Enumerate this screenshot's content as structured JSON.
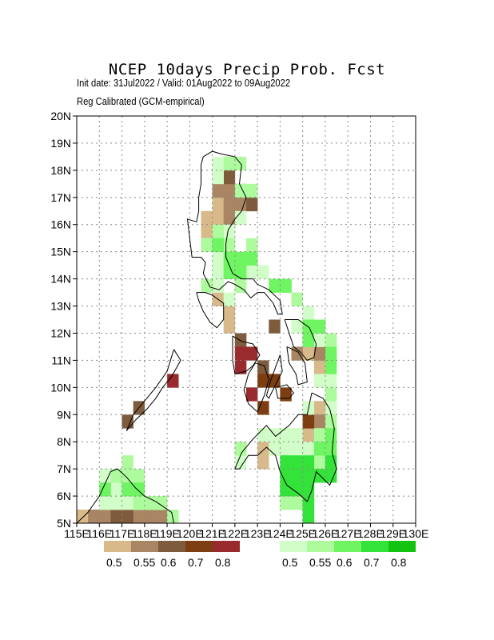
{
  "header": {
    "title": "NCEP 10days Precip Prob. Fcst",
    "subtitle_dates": "Init date: 31Jul2022 / Valid: 01Aug2022 to 09Aug2022",
    "subtitle_method": "Reg Calibrated (GCM-empirical)"
  },
  "map": {
    "lon_range": [
      115,
      130
    ],
    "lat_range": [
      5,
      20
    ],
    "x_ticks": [
      "115E",
      "116E",
      "117E",
      "118E",
      "119E",
      "120E",
      "121E",
      "122E",
      "123E",
      "124E",
      "125E",
      "126E",
      "127E",
      "128E",
      "129E",
      "130E"
    ],
    "y_ticks": [
      "5N",
      "6N",
      "7N",
      "8N",
      "9N",
      "10N",
      "11N",
      "12N",
      "13N",
      "14N",
      "15N",
      "16N",
      "17N",
      "18N",
      "19N",
      "20N"
    ],
    "grid": "dotted"
  },
  "legend": {
    "dry": {
      "colors": [
        "#d7b98a",
        "#a98563",
        "#7e5b3c",
        "#7c3e10",
        "#992a2e"
      ],
      "labels": [
        "0.5",
        "0.55",
        "0.6",
        "0.7",
        "0.8"
      ]
    },
    "wet": {
      "colors": [
        "#d1fdc8",
        "#aefb9e",
        "#6ff561",
        "#34e33a",
        "#12c40f"
      ],
      "labels": [
        "0.5",
        "0.55",
        "0.6",
        "0.7",
        "0.8"
      ]
    }
  },
  "cells": {
    "#d7b98a": [
      [
        115,
        5
      ],
      [
        121,
        16.5
      ],
      [
        121,
        16
      ],
      [
        120.5,
        16
      ],
      [
        120.5,
        15.5
      ],
      [
        121,
        13
      ],
      [
        121.5,
        12.5
      ],
      [
        121.5,
        12
      ],
      [
        122,
        7.5
      ],
      [
        123,
        7.5
      ],
      [
        123,
        7
      ],
      [
        124.5,
        7
      ],
      [
        124.5,
        8
      ],
      [
        125,
        8
      ],
      [
        125.5,
        8
      ],
      [
        125.5,
        9
      ],
      [
        125,
        11
      ],
      [
        125.5,
        10.5
      ],
      [
        122,
        11.5
      ],
      [
        121,
        17.5
      ],
      [
        121.5,
        17.5
      ]
    ],
    "#a98563": [
      [
        115.5,
        5
      ],
      [
        116,
        5
      ],
      [
        118,
        5
      ],
      [
        118.5,
        5
      ],
      [
        117.5,
        5
      ],
      [
        121.5,
        18
      ],
      [
        121,
        17
      ],
      [
        121.5,
        17
      ],
      [
        121.5,
        16.5
      ],
      [
        121.5,
        16
      ],
      [
        122,
        17
      ],
      [
        122,
        16.5
      ],
      [
        125.5,
        11
      ],
      [
        124.5,
        11
      ],
      [
        125.5,
        8.5
      ],
      [
        125,
        8.5
      ]
    ],
    "#7e5b3c": [
      [
        116.5,
        5
      ],
      [
        117,
        5
      ],
      [
        121.5,
        17.5
      ],
      [
        122.5,
        16.5
      ],
      [
        123.5,
        12
      ],
      [
        122,
        11.5
      ],
      [
        117,
        8.5
      ],
      [
        117.5,
        9
      ],
      [
        123,
        10.5
      ]
    ],
    "#7c3e10": [
      [
        123,
        10
      ],
      [
        123.5,
        10
      ],
      [
        123,
        9
      ],
      [
        124,
        9.5
      ],
      [
        125,
        8.5
      ]
    ],
    "#992a2e": [
      [
        122,
        11
      ],
      [
        122.5,
        11
      ],
      [
        122,
        10.5
      ],
      [
        119,
        10
      ],
      [
        122.5,
        9.5
      ]
    ],
    "#d1fdc8": [
      [
        121,
        18
      ],
      [
        122,
        18
      ],
      [
        121,
        17.5
      ],
      [
        122,
        16
      ],
      [
        120.5,
        15
      ],
      [
        121,
        15
      ],
      [
        121.5,
        15
      ],
      [
        121,
        14.5
      ],
      [
        121.5,
        14.5
      ],
      [
        121,
        14
      ],
      [
        121.5,
        14
      ],
      [
        121,
        13.5
      ],
      [
        122,
        13.5
      ],
      [
        123,
        14
      ],
      [
        122.5,
        14
      ],
      [
        120.5,
        13.5
      ],
      [
        121.5,
        13
      ],
      [
        121.5,
        15.5
      ],
      [
        123,
        8
      ],
      [
        123.5,
        8
      ],
      [
        123.5,
        7.5
      ],
      [
        124,
        7.5
      ],
      [
        124,
        8
      ],
      [
        124.5,
        8
      ],
      [
        124.5,
        7.5
      ],
      [
        125,
        7.5
      ],
      [
        125,
        7
      ],
      [
        125.5,
        7.5
      ],
      [
        125,
        9
      ],
      [
        125.5,
        10
      ],
      [
        125.5,
        11.5
      ],
      [
        124.5,
        12
      ],
      [
        125,
        12.5
      ],
      [
        126,
        10
      ],
      [
        126,
        9
      ],
      [
        116,
        6.5
      ],
      [
        116.5,
        6.5
      ],
      [
        116.5,
        6
      ],
      [
        117,
        6
      ],
      [
        117,
        6.5
      ],
      [
        116.5,
        5.5
      ],
      [
        117,
        5.5
      ],
      [
        117.5,
        5.5
      ],
      [
        116,
        5.5
      ],
      [
        122,
        7
      ],
      [
        118.5,
        5.5
      ],
      [
        118,
        5.5
      ]
    ],
    "#aefb9e": [
      [
        121,
        15.5
      ],
      [
        121.5,
        15
      ],
      [
        120.5,
        13.5
      ],
      [
        121.5,
        14
      ],
      [
        122,
        14
      ],
      [
        122,
        13.5
      ],
      [
        124,
        13.5
      ],
      [
        124.5,
        13
      ],
      [
        125.5,
        12
      ],
      [
        125,
        11.5
      ],
      [
        126,
        11.5
      ],
      [
        126,
        9.5
      ],
      [
        126,
        8.5
      ],
      [
        125.5,
        8
      ],
      [
        126,
        7.5
      ],
      [
        125.5,
        7
      ],
      [
        126,
        7
      ],
      [
        117,
        7
      ],
      [
        116.5,
        6.5
      ],
      [
        117,
        6.5
      ],
      [
        117.5,
        6.5
      ],
      [
        117.5,
        6
      ],
      [
        117.5,
        5.5
      ],
      [
        118,
        5.5
      ],
      [
        118.5,
        5.5
      ],
      [
        119,
        5
      ],
      [
        116,
        6
      ],
      [
        122,
        7.5
      ],
      [
        124,
        6
      ],
      [
        124.5,
        6
      ],
      [
        124,
        5.5
      ],
      [
        124.5,
        5.5
      ],
      [
        125,
        5.5
      ],
      [
        125,
        6
      ],
      [
        125.5,
        6.5
      ],
      [
        122.5,
        15
      ],
      [
        122,
        17
      ],
      [
        122.5,
        17
      ],
      [
        122,
        18
      ],
      [
        121.5,
        18
      ],
      [
        120.5,
        15
      ]
    ],
    "#6ff561": [
      [
        122.5,
        14.5
      ],
      [
        122,
        14
      ],
      [
        121.5,
        14
      ],
      [
        124,
        13.5
      ],
      [
        125,
        12
      ],
      [
        125.5,
        12
      ],
      [
        126,
        8
      ],
      [
        126,
        7.5
      ],
      [
        125.5,
        7.5
      ],
      [
        126,
        6.5
      ],
      [
        125.5,
        6.5
      ],
      [
        125,
        6.5
      ],
      [
        124,
        6.5
      ],
      [
        124,
        7
      ],
      [
        117,
        6
      ],
      [
        117.5,
        6
      ],
      [
        116,
        6
      ],
      [
        121,
        15
      ],
      [
        121.5,
        14.5
      ],
      [
        122,
        14.5
      ],
      [
        123.5,
        13.5
      ],
      [
        125,
        11.5
      ],
      [
        126,
        11
      ],
      [
        126,
        10.5
      ],
      [
        124,
        6
      ],
      [
        124.5,
        6
      ],
      [
        125,
        6
      ],
      [
        125,
        5.5
      ],
      [
        125,
        5
      ]
    ],
    "#34e33a": [
      [
        124,
        7
      ],
      [
        124.5,
        7
      ],
      [
        124,
        6.5
      ],
      [
        124.5,
        6.5
      ],
      [
        125,
        6.5
      ],
      [
        124,
        6
      ],
      [
        124.5,
        6
      ],
      [
        125,
        6
      ],
      [
        125,
        7
      ],
      [
        125,
        5.5
      ],
      [
        125,
        5
      ],
      [
        125.5,
        6.5
      ],
      [
        126,
        6.5
      ],
      [
        126,
        7
      ]
    ]
  },
  "coastlines": [
    {
      "name": "Luzon",
      "points": [
        [
          120.6,
          18.5
        ],
        [
          121,
          18.7
        ],
        [
          121.4,
          18.6
        ],
        [
          122,
          18.5
        ],
        [
          122.3,
          18.2
        ],
        [
          122.2,
          17.5
        ],
        [
          122.5,
          17
        ],
        [
          122.3,
          16.5
        ],
        [
          122,
          16.2
        ],
        [
          121.7,
          15.8
        ],
        [
          121.6,
          15.3
        ],
        [
          121.6,
          14.8
        ],
        [
          121.9,
          14.2
        ],
        [
          122.3,
          14.0
        ],
        [
          122.8,
          14.0
        ],
        [
          123.0,
          13.8
        ],
        [
          123.5,
          13.6
        ],
        [
          124.0,
          13.2
        ],
        [
          124.1,
          12.7
        ],
        [
          123.9,
          12.7
        ],
        [
          123.7,
          13.1
        ],
        [
          123.3,
          13.5
        ],
        [
          123.0,
          13.5
        ],
        [
          122.7,
          13.3
        ],
        [
          122.4,
          13.6
        ],
        [
          122.0,
          13.8
        ],
        [
          121.7,
          13.9
        ],
        [
          121.3,
          13.6
        ],
        [
          120.9,
          13.7
        ],
        [
          120.6,
          14.2
        ],
        [
          120.7,
          14.6
        ],
        [
          120.5,
          14.8
        ],
        [
          120.1,
          14.8
        ],
        [
          120.0,
          15.5
        ],
        [
          119.9,
          16.2
        ],
        [
          120.3,
          16.1
        ],
        [
          120.4,
          16.5
        ],
        [
          120.4,
          17.0
        ],
        [
          120.5,
          17.5
        ],
        [
          120.5,
          18.2
        ],
        [
          120.6,
          18.5
        ]
      ]
    },
    {
      "name": "Mindoro",
      "points": [
        [
          120.3,
          13.5
        ],
        [
          120.7,
          13.5
        ],
        [
          121.0,
          13.4
        ],
        [
          121.5,
          13.1
        ],
        [
          121.5,
          12.5
        ],
        [
          121.2,
          12.2
        ],
        [
          120.9,
          12.4
        ],
        [
          120.6,
          12.8
        ],
        [
          120.4,
          13.2
        ],
        [
          120.3,
          13.5
        ]
      ]
    },
    {
      "name": "Palawan",
      "points": [
        [
          119.3,
          11.4
        ],
        [
          119.6,
          11.0
        ],
        [
          119.2,
          10.4
        ],
        [
          118.8,
          10.0
        ],
        [
          118.5,
          9.6
        ],
        [
          118.1,
          9.2
        ],
        [
          117.6,
          8.8
        ],
        [
          117.2,
          8.4
        ],
        [
          117.5,
          9.0
        ],
        [
          118.0,
          9.5
        ],
        [
          118.5,
          10.0
        ],
        [
          119.0,
          10.6
        ],
        [
          119.3,
          11.4
        ]
      ]
    },
    {
      "name": "Panay",
      "points": [
        [
          121.9,
          11.9
        ],
        [
          122.3,
          11.7
        ],
        [
          122.8,
          11.6
        ],
        [
          123.1,
          11.2
        ],
        [
          122.8,
          10.8
        ],
        [
          122.5,
          10.6
        ],
        [
          122.0,
          10.5
        ],
        [
          121.9,
          11.0
        ],
        [
          121.9,
          11.9
        ]
      ]
    },
    {
      "name": "Negros",
      "points": [
        [
          122.9,
          10.9
        ],
        [
          123.3,
          10.8
        ],
        [
          123.5,
          10.3
        ],
        [
          123.3,
          9.7
        ],
        [
          123.0,
          9.1
        ],
        [
          122.6,
          9.4
        ],
        [
          122.4,
          9.9
        ],
        [
          122.6,
          10.5
        ],
        [
          122.9,
          10.9
        ]
      ]
    },
    {
      "name": "Cebu",
      "points": [
        [
          124.0,
          11.2
        ],
        [
          124.1,
          10.6
        ],
        [
          123.8,
          10.1
        ],
        [
          123.5,
          9.6
        ],
        [
          123.4,
          9.7
        ],
        [
          123.6,
          10.3
        ],
        [
          124.0,
          11.2
        ]
      ]
    },
    {
      "name": "Bohol",
      "points": [
        [
          123.8,
          10.0
        ],
        [
          124.3,
          10.1
        ],
        [
          124.6,
          9.8
        ],
        [
          124.4,
          9.6
        ],
        [
          123.9,
          9.6
        ],
        [
          123.8,
          10.0
        ]
      ]
    },
    {
      "name": "Samar",
      "points": [
        [
          124.2,
          12.5
        ],
        [
          124.8,
          12.5
        ],
        [
          125.3,
          12.2
        ],
        [
          125.6,
          11.6
        ],
        [
          125.5,
          11.1
        ],
        [
          125.2,
          11.0
        ],
        [
          124.9,
          11.3
        ],
        [
          124.6,
          11.5
        ],
        [
          124.4,
          12.0
        ],
        [
          124.2,
          12.5
        ]
      ]
    },
    {
      "name": "Leyte",
      "points": [
        [
          124.3,
          11.5
        ],
        [
          124.8,
          11.3
        ],
        [
          125.1,
          10.9
        ],
        [
          125.2,
          10.2
        ],
        [
          124.8,
          10.1
        ],
        [
          124.7,
          10.5
        ],
        [
          124.4,
          10.9
        ],
        [
          124.3,
          11.5
        ]
      ]
    },
    {
      "name": "Mindanao",
      "points": [
        [
          125.4,
          9.8
        ],
        [
          125.9,
          9.6
        ],
        [
          126.2,
          9.2
        ],
        [
          126.4,
          8.5
        ],
        [
          126.3,
          7.6
        ],
        [
          126.5,
          7.0
        ],
        [
          126.2,
          6.4
        ],
        [
          125.6,
          6.9
        ],
        [
          125.4,
          6.2
        ],
        [
          125.2,
          5.8
        ],
        [
          124.8,
          6.1
        ],
        [
          124.3,
          6.4
        ],
        [
          124.0,
          6.9
        ],
        [
          123.8,
          7.5
        ],
        [
          123.4,
          7.8
        ],
        [
          123.0,
          7.5
        ],
        [
          122.6,
          7.5
        ],
        [
          122.2,
          7.0
        ],
        [
          122.0,
          7.0
        ],
        [
          122.3,
          7.6
        ],
        [
          122.8,
          8.1
        ],
        [
          123.4,
          8.6
        ],
        [
          123.8,
          8.2
        ],
        [
          124.4,
          8.6
        ],
        [
          124.8,
          9.0
        ],
        [
          125.2,
          9.0
        ],
        [
          125.4,
          9.8
        ]
      ]
    },
    {
      "name": "Borneo",
      "points": [
        [
          115.0,
          5.0
        ],
        [
          115.5,
          5.4
        ],
        [
          116.0,
          6.0
        ],
        [
          116.5,
          6.9
        ],
        [
          116.8,
          7.0
        ],
        [
          117.2,
          6.7
        ],
        [
          117.6,
          6.3
        ],
        [
          118.0,
          6.0
        ],
        [
          118.5,
          5.8
        ],
        [
          119.2,
          5.4
        ],
        [
          119.3,
          5.0
        ]
      ]
    }
  ]
}
